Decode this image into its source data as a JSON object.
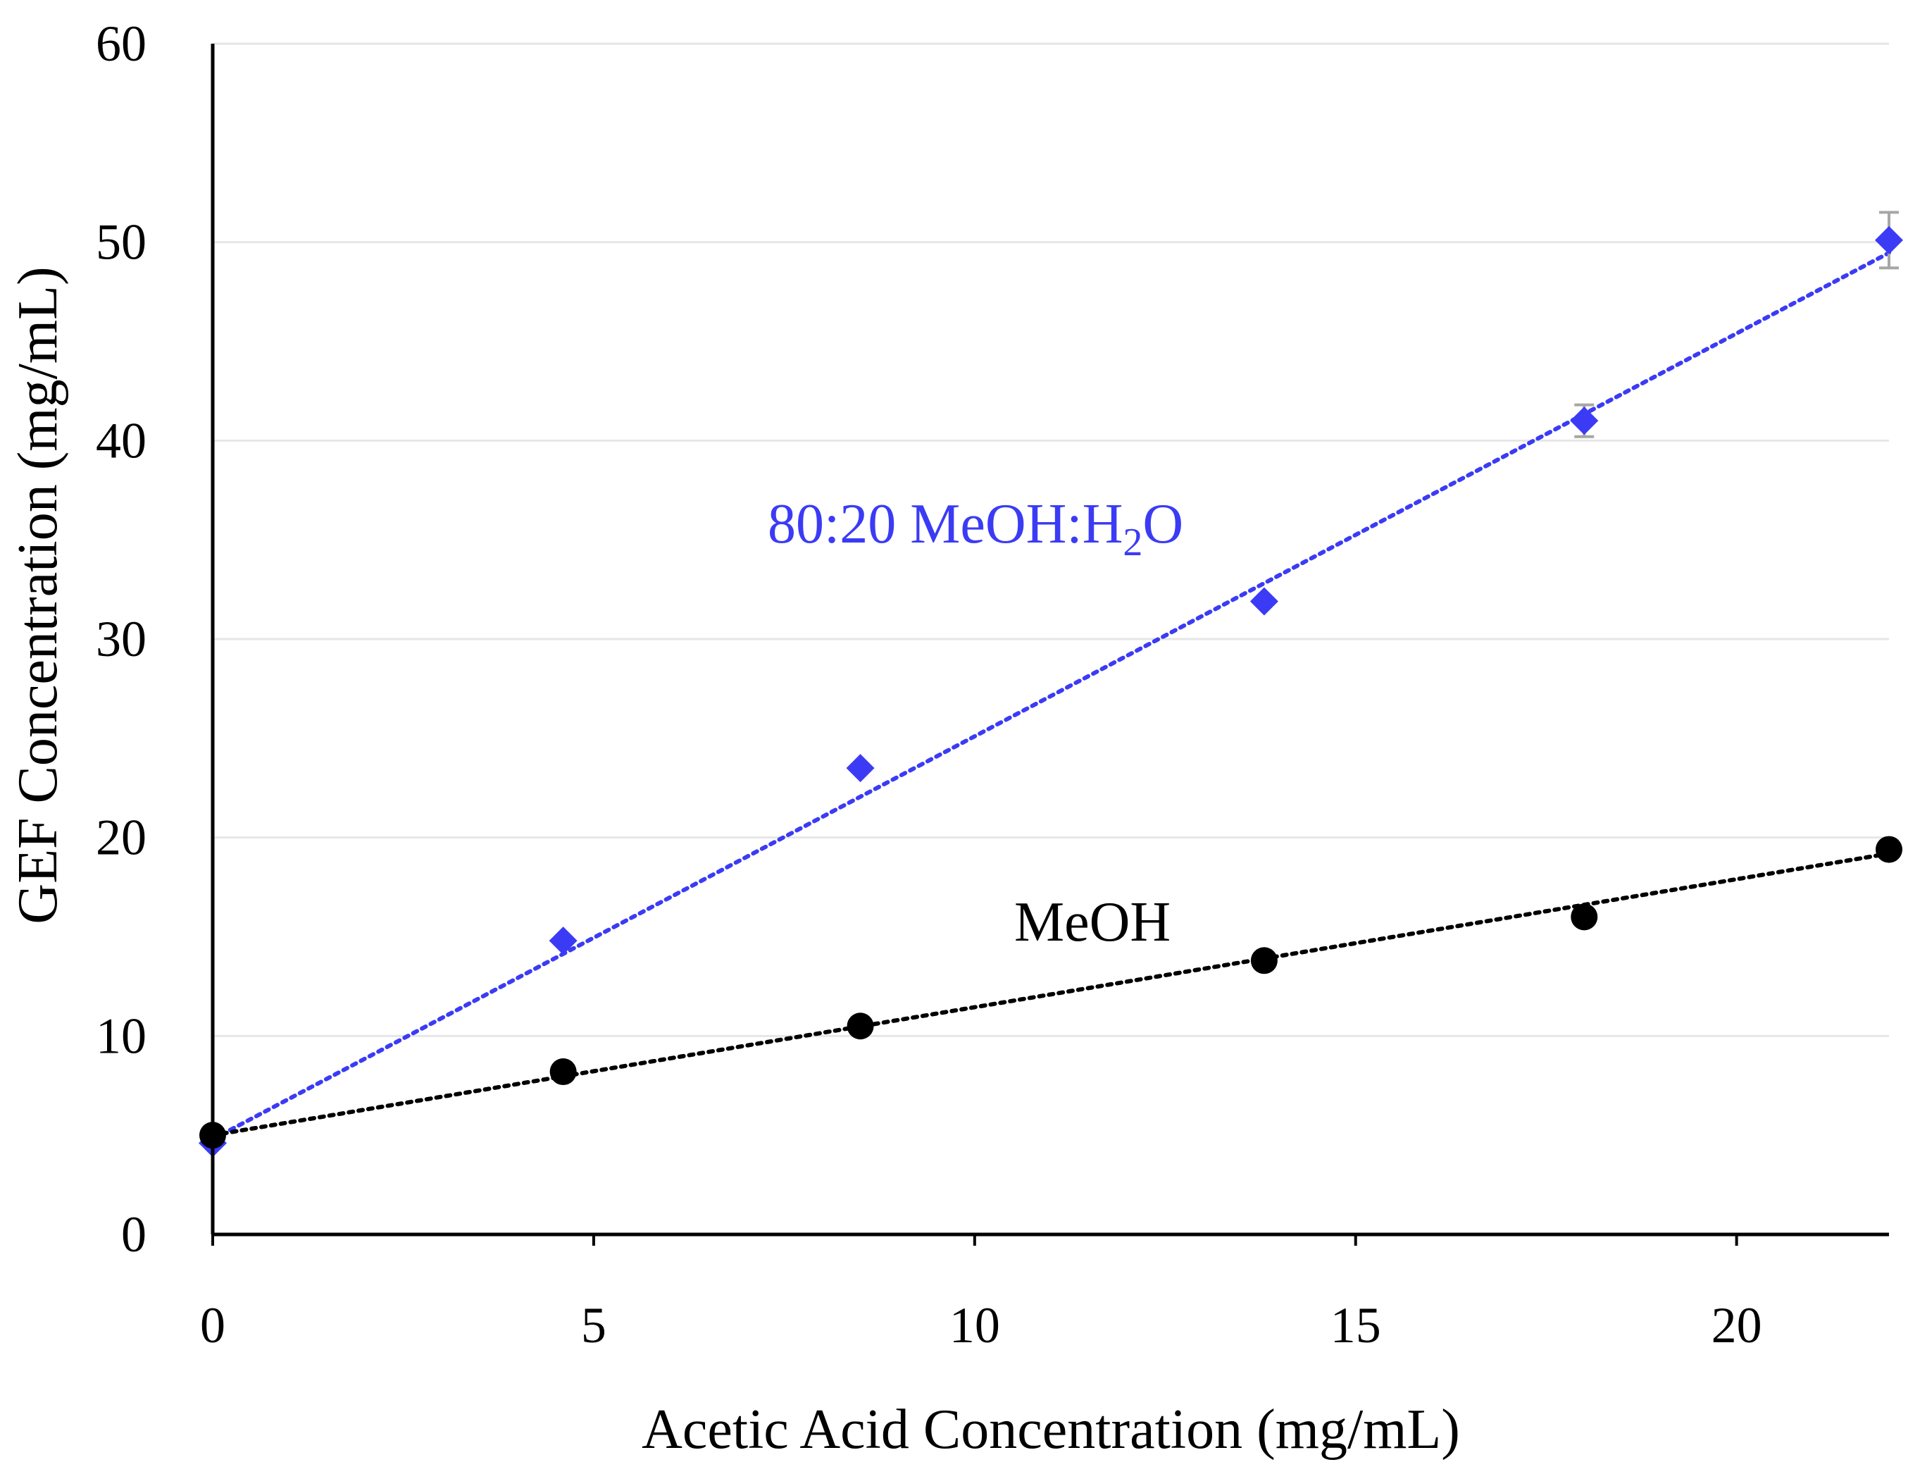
{
  "chart_data": {
    "type": "scatter",
    "title": "",
    "xlabel": "Acetic Acid Concentration (mg/mL)",
    "ylabel": "GEF Concentration (mg/mL)",
    "xlim": [
      0,
      22
    ],
    "ylim": [
      0,
      60
    ],
    "x_ticks": [
      0,
      5,
      10,
      15,
      20
    ],
    "y_ticks": [
      0,
      10,
      20,
      30,
      40,
      50,
      60
    ],
    "grid": "horizontal",
    "series": [
      {
        "name": "80:20 MeOH:H2O",
        "label_parts": [
          "80:20 MeOH:H",
          "2",
          "O"
        ],
        "color": "#3b3bf5",
        "marker": "diamond",
        "x": [
          0,
          4.6,
          8.5,
          13.8,
          18.0,
          22.0
        ],
        "y": [
          4.6,
          14.8,
          23.5,
          31.9,
          41.0,
          50.1
        ],
        "error": [
          0,
          0,
          0,
          0,
          0.8,
          1.4
        ],
        "trendline": {
          "slope": 2.03,
          "intercept": 4.8
        }
      },
      {
        "name": "MeOH",
        "label_parts": [
          "MeOH"
        ],
        "color": "#000000",
        "marker": "circle",
        "x": [
          0,
          4.6,
          8.5,
          13.8,
          18.0,
          22.0
        ],
        "y": [
          5.0,
          8.2,
          10.5,
          13.8,
          16.0,
          19.4
        ],
        "error": [
          0,
          0,
          0,
          0,
          0,
          0
        ],
        "trendline": {
          "slope": 0.645,
          "intercept": 5.0
        }
      }
    ],
    "axis_color": "#000000",
    "grid_color": "#e6e6e6",
    "error_bar_color": "#a6a6a6"
  }
}
